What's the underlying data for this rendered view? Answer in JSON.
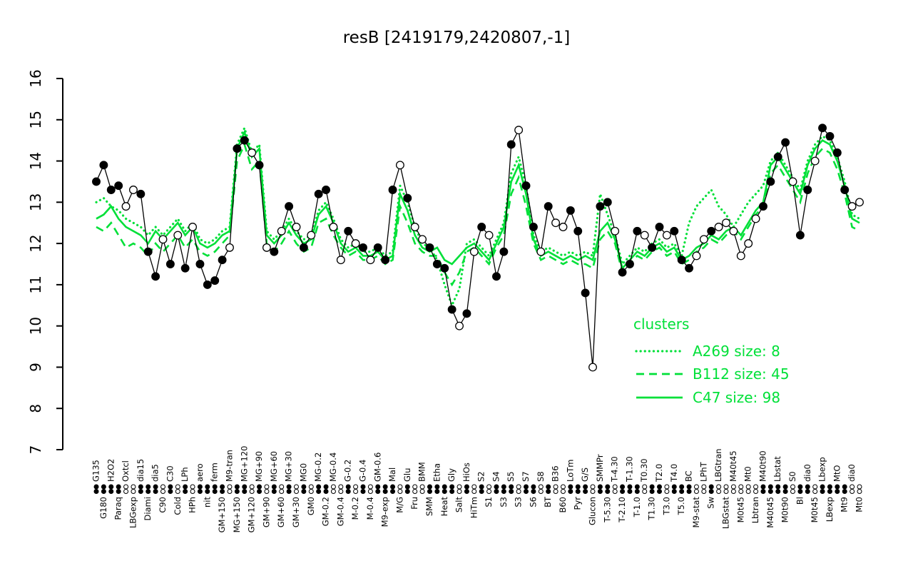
{
  "title": "resB [2419179,2420807,-1]",
  "colors": {
    "accent_green": "#00E038",
    "series_black": "#000000",
    "open_point_fill": "#FFFFFF"
  },
  "legend": {
    "heading": "clusters",
    "entries": [
      {
        "label": "A269 size: 8",
        "style": "dotted"
      },
      {
        "label": "B112 size: 45",
        "style": "dashed"
      },
      {
        "label": "C47 size: 98",
        "style": "solid"
      }
    ]
  },
  "y_axis": {
    "min": 7,
    "max": 16,
    "ticks": [
      7,
      8,
      9,
      10,
      11,
      12,
      13,
      14,
      15,
      16
    ]
  },
  "chart_data": {
    "type": "line",
    "title": "resB [2419179,2420807,-1]",
    "xlabel": "",
    "ylabel": "",
    "ylim": [
      7,
      16
    ],
    "grid": false,
    "legend_position": "right-center",
    "categories": [
      "G135",
      "G180",
      "H2O2",
      "Paraq",
      "Oxtcl",
      "LBGexp",
      "dia15",
      "Diami",
      "dia5",
      "C90",
      "C30",
      "Cold",
      "LPh",
      "HPh",
      "aero",
      "nit",
      "ferm",
      "GM+150",
      "M9-tran",
      "MG+150",
      "MG+120",
      "GM+120",
      "MG+90",
      "GM+90",
      "MG+60",
      "GM+60",
      "MG+30",
      "GM+30",
      "MG0",
      "GM0",
      "MG-0.2",
      "GM-0.2",
      "MG-0.4",
      "GM-0.4",
      "G-0.2",
      "M-0.2",
      "G-0.4",
      "M-0.4",
      "GM-0.6",
      "M9-exp",
      "Mal",
      "M/G",
      "Glu",
      "Fru",
      "BMM",
      "SMM",
      "Etha",
      "Heat",
      "Gly",
      "Salt",
      "HiOs",
      "HiTm",
      "S2",
      "S1",
      "S4",
      "S3",
      "S5",
      "S3",
      "S7",
      "S6",
      "S8",
      "BT",
      "B36",
      "B60",
      "LoTm",
      "Pyr",
      "G/S",
      "Glucon",
      "SMMPr",
      "T-5.30",
      "T-4.30",
      "T-2.10",
      "T-1.30",
      "T-1.0",
      "T0.30",
      "T1.30",
      "T2.0",
      "T3.0",
      "T4.0",
      "T5.0",
      "BC",
      "M9-stat",
      "LPhT",
      "Sw",
      "LBGtran",
      "LBGstat",
      "M40t45",
      "M0t45",
      "Mt0",
      "Lbtran",
      "M40t90",
      "M40t45",
      "Lbstat",
      "M0t90",
      "S0",
      "Bl",
      "dia0",
      "M0t45",
      "Lbexp",
      "LBexp",
      "MtO",
      "Mt9",
      "dia0",
      "Mt0"
    ],
    "series": [
      {
        "name": "resB",
        "color": "#000000",
        "style": "solid",
        "marker": "circle",
        "values": [
          13.5,
          13.9,
          13.3,
          13.4,
          12.9,
          13.3,
          13.2,
          11.8,
          11.2,
          12.1,
          11.5,
          12.2,
          11.4,
          12.4,
          11.5,
          11.0,
          11.1,
          11.6,
          11.9,
          14.3,
          14.5,
          14.2,
          13.9,
          11.9,
          11.8,
          12.3,
          12.9,
          12.4,
          11.9,
          12.2,
          13.2,
          13.3,
          12.4,
          11.6,
          12.3,
          12.0,
          11.9,
          11.6,
          11.9,
          11.6,
          13.3,
          13.9,
          13.1,
          12.4,
          12.1,
          11.9,
          11.5,
          11.4,
          10.4,
          10.0,
          10.3,
          11.8,
          12.4,
          12.2,
          11.2,
          11.8,
          14.4,
          14.75,
          13.4,
          12.4,
          11.8,
          12.9,
          12.5,
          12.4,
          12.8,
          12.3,
          10.8,
          9.0,
          12.9,
          13.0,
          12.3,
          11.3,
          11.5,
          12.3,
          12.2,
          11.9,
          12.4,
          12.2,
          12.3,
          11.6,
          11.4,
          11.7,
          12.1,
          12.3,
          12.4,
          12.5,
          12.3,
          11.7,
          12.0,
          12.6,
          12.9,
          13.5,
          14.1,
          14.45,
          13.5,
          12.2,
          13.3,
          14.0,
          14.8,
          14.6,
          14.2,
          13.3,
          12.9,
          13.0
        ],
        "filled": [
          1,
          1,
          1,
          1,
          0,
          0,
          1,
          1,
          1,
          0,
          1,
          0,
          1,
          0,
          1,
          1,
          1,
          1,
          0,
          1,
          1,
          0,
          1,
          0,
          1,
          0,
          1,
          0,
          1,
          0,
          1,
          1,
          0,
          0,
          1,
          0,
          1,
          0,
          1,
          1,
          1,
          0,
          1,
          0,
          0,
          1,
          1,
          1,
          1,
          0,
          1,
          0,
          1,
          0,
          1,
          1,
          1,
          0,
          1,
          1,
          0,
          1,
          0,
          0,
          1,
          1,
          1,
          0,
          1,
          1,
          0,
          1,
          1,
          1,
          0,
          1,
          1,
          0,
          1,
          1,
          1,
          0,
          0,
          1,
          0,
          0,
          0,
          0,
          0,
          0,
          1,
          1,
          1,
          1,
          0,
          1,
          1,
          0,
          1,
          1,
          1,
          1,
          0,
          0
        ]
      },
      {
        "name": "A269",
        "color": "#00E038",
        "style": "dotted",
        "values": [
          13.0,
          13.1,
          12.9,
          12.8,
          12.6,
          12.5,
          12.4,
          12.2,
          12.4,
          12.2,
          12.4,
          12.6,
          12.3,
          12.5,
          12.1,
          12.0,
          12.1,
          12.3,
          12.4,
          14.4,
          14.8,
          14.2,
          14.4,
          12.3,
          12.1,
          12.3,
          12.6,
          12.3,
          12.1,
          12.2,
          12.8,
          13.0,
          12.6,
          12.1,
          11.9,
          12.0,
          11.8,
          11.8,
          11.9,
          11.7,
          11.8,
          13.4,
          13.0,
          12.4,
          12.0,
          11.9,
          11.6,
          11.0,
          10.5,
          10.9,
          12.0,
          12.1,
          11.9,
          11.7,
          12.1,
          12.5,
          13.7,
          14.1,
          13.4,
          12.2,
          11.8,
          11.9,
          11.8,
          11.7,
          11.8,
          11.7,
          11.8,
          11.7,
          13.2,
          12.7,
          12.2,
          11.5,
          11.7,
          11.9,
          11.8,
          12.0,
          12.1,
          11.9,
          12.0,
          11.7,
          12.5,
          12.9,
          13.1,
          13.3,
          12.9,
          12.7,
          12.4,
          12.7,
          13.0,
          13.2,
          13.4,
          14.0,
          14.2,
          13.9,
          13.6,
          13.3,
          14.0,
          14.4,
          14.6,
          14.5,
          14.1,
          13.5,
          12.7,
          12.6
        ]
      },
      {
        "name": "B112",
        "color": "#00E038",
        "style": "dashed",
        "values": [
          12.4,
          12.3,
          12.5,
          12.2,
          11.9,
          12.0,
          11.9,
          11.7,
          12.0,
          11.8,
          12.0,
          12.2,
          11.9,
          12.1,
          11.8,
          11.7,
          11.8,
          12.0,
          12.2,
          14.0,
          14.4,
          13.8,
          14.0,
          12.0,
          11.8,
          12.0,
          12.3,
          12.0,
          11.8,
          11.9,
          12.5,
          12.6,
          12.2,
          11.9,
          11.7,
          11.8,
          11.6,
          11.6,
          11.7,
          11.5,
          11.6,
          12.9,
          12.5,
          12.0,
          11.8,
          11.7,
          11.7,
          11.3,
          11.0,
          11.3,
          11.8,
          11.9,
          11.7,
          11.5,
          11.9,
          12.2,
          13.2,
          13.6,
          12.9,
          12.0,
          11.6,
          11.7,
          11.6,
          11.5,
          11.6,
          11.5,
          11.5,
          11.4,
          12.1,
          12.3,
          12.0,
          11.3,
          11.5,
          11.7,
          11.6,
          11.8,
          11.9,
          11.7,
          11.8,
          11.5,
          11.6,
          11.8,
          11.9,
          12.1,
          12.0,
          12.2,
          12.3,
          12.1,
          12.4,
          12.7,
          12.9,
          13.7,
          13.9,
          13.6,
          13.3,
          13.0,
          13.7,
          14.1,
          14.3,
          14.2,
          13.8,
          13.2,
          12.4,
          12.3
        ]
      },
      {
        "name": "C47",
        "color": "#00E038",
        "style": "solid",
        "values": [
          12.6,
          12.7,
          12.9,
          12.6,
          12.4,
          12.3,
          12.2,
          12.0,
          12.3,
          12.1,
          12.3,
          12.5,
          12.2,
          12.4,
          12.0,
          11.9,
          12.0,
          12.2,
          12.3,
          14.3,
          14.7,
          14.1,
          14.3,
          12.2,
          12.0,
          12.2,
          12.5,
          12.2,
          12.0,
          12.1,
          12.7,
          12.9,
          12.5,
          12.0,
          11.8,
          11.9,
          11.7,
          11.7,
          11.8,
          11.6,
          11.7,
          13.2,
          12.8,
          12.2,
          11.9,
          11.8,
          11.9,
          11.6,
          11.5,
          11.7,
          11.9,
          12.0,
          11.8,
          11.6,
          12.0,
          12.4,
          13.5,
          13.9,
          13.2,
          12.1,
          11.7,
          11.8,
          11.7,
          11.6,
          11.7,
          11.6,
          11.7,
          11.6,
          12.3,
          12.5,
          12.1,
          11.4,
          11.6,
          11.8,
          11.7,
          11.9,
          12.0,
          11.8,
          11.9,
          11.6,
          11.7,
          11.9,
          12.0,
          12.2,
          12.1,
          12.3,
          12.4,
          12.2,
          12.5,
          12.8,
          13.0,
          13.9,
          14.1,
          13.8,
          13.5,
          13.2,
          13.9,
          14.3,
          14.5,
          14.4,
          14.0,
          13.4,
          12.6,
          12.5
        ]
      }
    ]
  }
}
